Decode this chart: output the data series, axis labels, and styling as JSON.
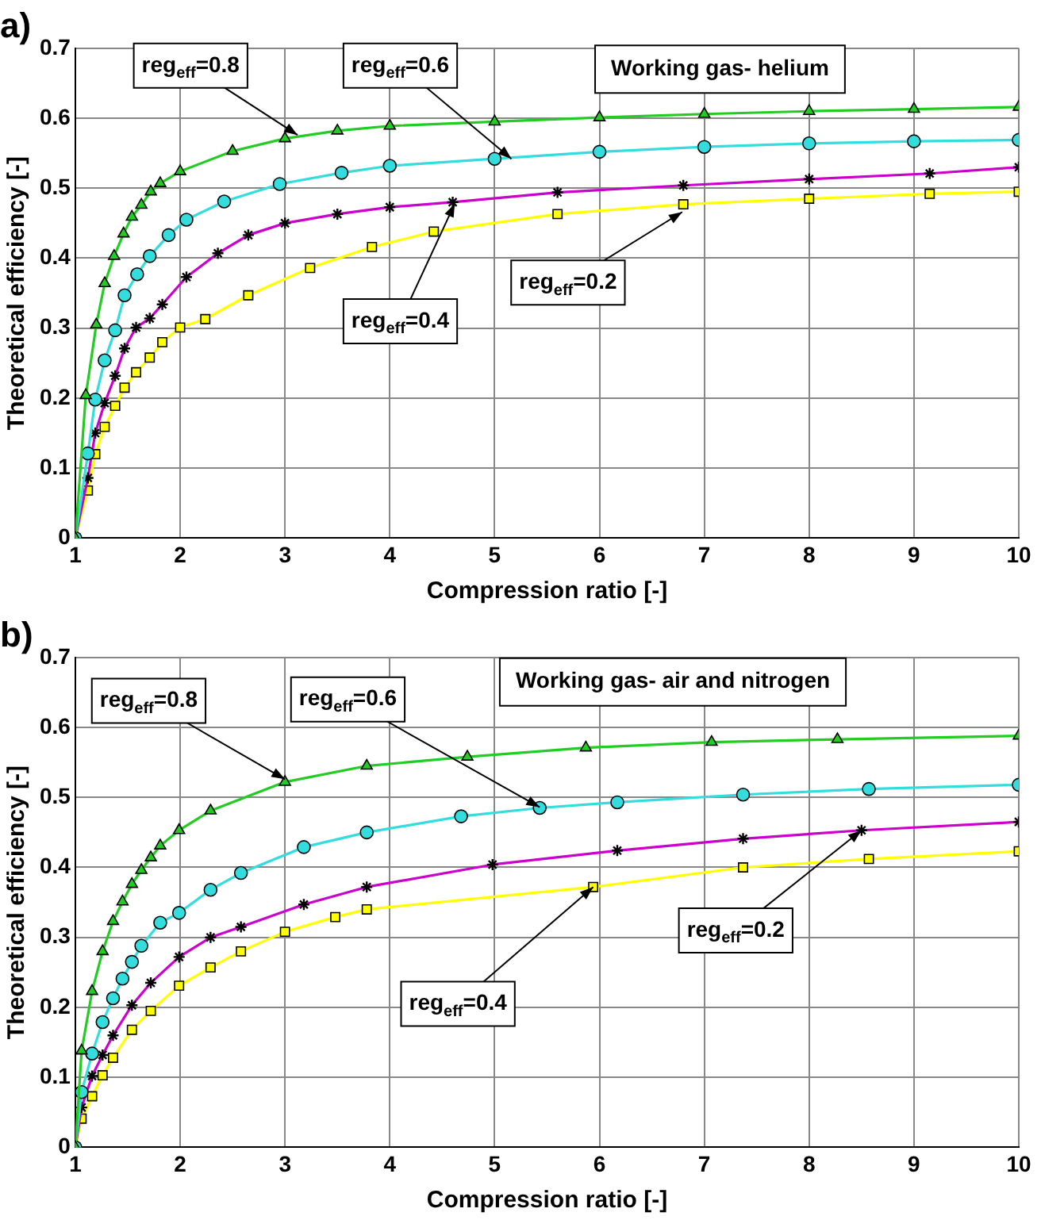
{
  "chart_data": [
    {
      "type": "line",
      "title": "a)",
      "xlabel": "Compression ratio [-]",
      "ylabel": "Theoretical efficiency [-]",
      "xlim": [
        1,
        10
      ],
      "ylim": [
        0,
        0.7
      ],
      "xticks": [
        1,
        2,
        3,
        4,
        5,
        6,
        7,
        8,
        9,
        10
      ],
      "yticks": [
        0,
        0.1,
        0.2,
        0.3,
        0.4,
        0.5,
        0.6,
        0.7
      ],
      "grid": true,
      "legend": false,
      "series": [
        {
          "color": "#22cc22",
          "marker": "triangle",
          "x": [
            1,
            1.1,
            1.2,
            1.28,
            1.37,
            1.46,
            1.54,
            1.63,
            1.72,
            1.81,
            2,
            2.5,
            3,
            3.5,
            4,
            5,
            6,
            7,
            8,
            9,
            10
          ],
          "values": [
            0,
            0.204,
            0.305,
            0.364,
            0.403,
            0.435,
            0.459,
            0.476,
            0.495,
            0.507,
            0.524,
            0.553,
            0.571,
            0.582,
            0.589,
            0.595,
            0.601,
            0.606,
            0.61,
            0.613,
            0.616
          ]
        },
        {
          "color": "#33dddd",
          "marker": "circle",
          "x": [
            1,
            1.12,
            1.19,
            1.28,
            1.38,
            1.47,
            1.59,
            1.71,
            1.89,
            2.06,
            2.42,
            2.95,
            3.54,
            4,
            5,
            6,
            7,
            8,
            9,
            10
          ],
          "values": [
            0,
            0.121,
            0.198,
            0.254,
            0.297,
            0.347,
            0.377,
            0.403,
            0.433,
            0.455,
            0.481,
            0.506,
            0.522,
            0.532,
            0.542,
            0.552,
            0.559,
            0.564,
            0.567,
            0.569
          ]
        },
        {
          "color": "#cc00cc",
          "marker": "cross",
          "x": [
            1,
            1.12,
            1.19,
            1.28,
            1.38,
            1.47,
            1.58,
            1.71,
            1.83,
            2.06,
            2.36,
            2.65,
            3,
            3.5,
            4,
            4.6,
            5.6,
            6.8,
            8,
            9.15,
            10
          ],
          "values": [
            0,
            0.086,
            0.15,
            0.193,
            0.232,
            0.271,
            0.301,
            0.314,
            0.334,
            0.373,
            0.407,
            0.433,
            0.45,
            0.463,
            0.473,
            0.48,
            0.494,
            0.504,
            0.513,
            0.521,
            0.53
          ]
        },
        {
          "color": "#ffff00",
          "marker": "square",
          "x": [
            1,
            1.12,
            1.19,
            1.28,
            1.38,
            1.47,
            1.58,
            1.71,
            1.83,
            2,
            2.24,
            2.65,
            3.24,
            3.83,
            4.42,
            5.6,
            6.8,
            8,
            9.15,
            10
          ],
          "values": [
            0,
            0.068,
            0.12,
            0.159,
            0.189,
            0.215,
            0.237,
            0.258,
            0.28,
            0.301,
            0.313,
            0.347,
            0.386,
            0.416,
            0.438,
            0.463,
            0.477,
            0.485,
            0.492,
            0.495
          ]
        }
      ],
      "annotations": [
        {
          "text": "reg$_{eff}$=0.8",
          "x": 3.12,
          "y": 0.576
        },
        {
          "text": "reg$_{eff}$=0.6",
          "x": 5.16,
          "y": 0.542
        },
        {
          "text": "reg$_{eff}$=0.4",
          "x": 4.62,
          "y": 0.478
        },
        {
          "text": "reg$_{eff}$=0.2",
          "x": 6.79,
          "y": 0.466
        },
        "Working gas- helium"
      ]
    },
    {
      "type": "line",
      "title": "b)",
      "xlabel": "Compression ratio [-]",
      "ylabel": "Theoretical efficiency [-]",
      "xlim": [
        1,
        10
      ],
      "ylim": [
        0,
        0.7
      ],
      "xticks": [
        1,
        2,
        3,
        4,
        5,
        6,
        7,
        8,
        9,
        10
      ],
      "yticks": [
        0,
        0.1,
        0.2,
        0.3,
        0.4,
        0.5,
        0.6,
        0.7
      ],
      "grid": true,
      "legend": false,
      "series": [
        {
          "color": "#22cc22",
          "marker": "triangle",
          "x": [
            1,
            1.06,
            1.16,
            1.26,
            1.36,
            1.45,
            1.54,
            1.63,
            1.72,
            1.81,
            1.99,
            2.29,
            3,
            3.78,
            4.74,
            5.87,
            7.07,
            8.27,
            10
          ],
          "values": [
            0,
            0.138,
            0.223,
            0.28,
            0.323,
            0.351,
            0.376,
            0.396,
            0.414,
            0.431,
            0.453,
            0.481,
            0.522,
            0.545,
            0.558,
            0.571,
            0.579,
            0.583,
            0.588
          ]
        },
        {
          "color": "#33dddd",
          "marker": "circle",
          "x": [
            1,
            1.06,
            1.16,
            1.26,
            1.36,
            1.45,
            1.54,
            1.63,
            1.81,
            1.99,
            2.29,
            2.58,
            3.18,
            3.78,
            4.68,
            5.43,
            6.17,
            7.37,
            8.57,
            10
          ],
          "values": [
            0,
            0.079,
            0.134,
            0.179,
            0.213,
            0.241,
            0.265,
            0.288,
            0.321,
            0.335,
            0.368,
            0.392,
            0.429,
            0.45,
            0.473,
            0.485,
            0.493,
            0.504,
            0.512,
            0.518
          ]
        },
        {
          "color": "#cc00cc",
          "marker": "cross",
          "x": [
            1,
            1.06,
            1.16,
            1.26,
            1.36,
            1.54,
            1.72,
            1.99,
            2.29,
            2.58,
            3.18,
            3.78,
            4.98,
            6.17,
            7.37,
            8.5,
            10
          ],
          "values": [
            0,
            0.057,
            0.102,
            0.132,
            0.16,
            0.203,
            0.235,
            0.272,
            0.3,
            0.315,
            0.347,
            0.372,
            0.404,
            0.424,
            0.441,
            0.453,
            0.465
          ]
        },
        {
          "color": "#ffff00",
          "marker": "square",
          "x": [
            1,
            1.06,
            1.16,
            1.26,
            1.36,
            1.54,
            1.72,
            1.99,
            2.29,
            2.58,
            3,
            3.48,
            3.78,
            5.94,
            7.37,
            8.57,
            10
          ],
          "values": [
            0,
            0.041,
            0.073,
            0.103,
            0.128,
            0.168,
            0.195,
            0.231,
            0.257,
            0.28,
            0.308,
            0.329,
            0.34,
            0.372,
            0.4,
            0.412,
            0.423
          ]
        }
      ],
      "annotations": [
        {
          "text": "reg$_{eff}$=0.8",
          "x": 3.0,
          "y": 0.526
        },
        {
          "text": "reg$_{eff}$=0.6",
          "x": 5.43,
          "y": 0.486
        },
        {
          "text": "reg$_{eff}$=0.2",
          "x": 8.5,
          "y": 0.453
        },
        {
          "text": "reg$_{eff}$=0.4",
          "x": 5.94,
          "y": 0.372
        },
        "Working gas- air and nitrogen"
      ]
    }
  ]
}
